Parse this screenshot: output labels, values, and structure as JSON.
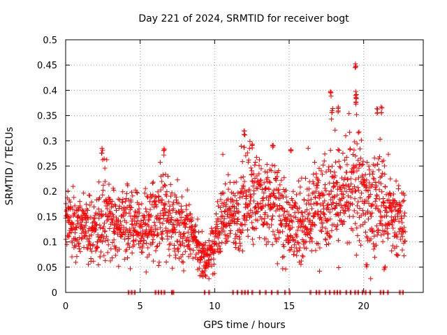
{
  "chart_data": {
    "type": "scatter",
    "title": "Day 221 of 2024, SRMTID for receiver bogt",
    "xlabel": "GPS time / hours",
    "ylabel": "SRMTID / TECUs",
    "xlim": [
      0,
      24
    ],
    "ylim": [
      0,
      0.5
    ],
    "grid": true,
    "marker": "+",
    "color": "#ff0000",
    "x_ticks": [
      {
        "value": 0,
        "label": "0"
      },
      {
        "value": 5,
        "label": "5"
      },
      {
        "value": 10,
        "label": "10"
      },
      {
        "value": 15,
        "label": "15"
      },
      {
        "value": 20,
        "label": "20"
      }
    ],
    "y_ticks": [
      {
        "value": 0,
        "label": "0"
      },
      {
        "value": 0.05,
        "label": "0.05"
      },
      {
        "value": 0.1,
        "label": "0.1"
      },
      {
        "value": 0.15,
        "label": "0.15"
      },
      {
        "value": 0.2,
        "label": "0.2"
      },
      {
        "value": 0.25,
        "label": "0.25"
      },
      {
        "value": 0.3,
        "label": "0.3"
      },
      {
        "value": 0.35,
        "label": "0.35"
      },
      {
        "value": 0.4,
        "label": "0.4"
      },
      {
        "value": 0.45,
        "label": "0.45"
      },
      {
        "value": 0.5,
        "label": "0.5"
      }
    ],
    "series_profile": {
      "name": "SRMTID",
      "hours": [
        0,
        0.5,
        1,
        1.5,
        2,
        2.5,
        3,
        3.5,
        4,
        4.5,
        5,
        5.5,
        6,
        6.5,
        7,
        7.5,
        8,
        8.5,
        9,
        9.5,
        10,
        10.5,
        11,
        11.5,
        12,
        12.5,
        13,
        13.5,
        14,
        14.5,
        15,
        15.5,
        16,
        16.5,
        17,
        17.5,
        18,
        18.5,
        19,
        19.5,
        20,
        20.5,
        21,
        21.5,
        22,
        22.5,
        22.8
      ],
      "median": [
        0.16,
        0.13,
        0.13,
        0.14,
        0.11,
        0.17,
        0.15,
        0.13,
        0.13,
        0.14,
        0.12,
        0.13,
        0.15,
        0.16,
        0.14,
        0.14,
        0.12,
        0.11,
        0.08,
        0.06,
        0.1,
        0.14,
        0.16,
        0.14,
        0.19,
        0.2,
        0.18,
        0.17,
        0.18,
        0.16,
        0.14,
        0.12,
        0.14,
        0.15,
        0.18,
        0.19,
        0.2,
        0.18,
        0.19,
        0.21,
        0.19,
        0.17,
        0.19,
        0.16,
        0.14,
        0.14,
        0.13
      ],
      "spread": [
        0.03,
        0.03,
        0.03,
        0.04,
        0.03,
        0.05,
        0.04,
        0.03,
        0.04,
        0.04,
        0.03,
        0.04,
        0.05,
        0.05,
        0.04,
        0.04,
        0.04,
        0.03,
        0.03,
        0.02,
        0.03,
        0.04,
        0.04,
        0.04,
        0.05,
        0.05,
        0.04,
        0.05,
        0.05,
        0.05,
        0.04,
        0.04,
        0.04,
        0.05,
        0.05,
        0.06,
        0.06,
        0.05,
        0.06,
        0.06,
        0.06,
        0.05,
        0.06,
        0.05,
        0.04,
        0.04,
        0.03
      ],
      "peaks": [
        {
          "x": 2.45,
          "y": 0.29
        },
        {
          "x": 6.6,
          "y": 0.285
        },
        {
          "x": 12.0,
          "y": 0.325
        },
        {
          "x": 12.5,
          "y": 0.3
        },
        {
          "x": 13.9,
          "y": 0.295
        },
        {
          "x": 15.1,
          "y": 0.295
        },
        {
          "x": 17.8,
          "y": 0.4
        },
        {
          "x": 17.9,
          "y": 0.37
        },
        {
          "x": 18.3,
          "y": 0.37
        },
        {
          "x": 19.45,
          "y": 0.46
        },
        {
          "x": 19.5,
          "y": 0.4
        },
        {
          "x": 19.5,
          "y": 0.385
        },
        {
          "x": 20.9,
          "y": 0.365
        },
        {
          "x": 21.2,
          "y": 0.37
        }
      ],
      "troughs": [
        {
          "x": 9.2,
          "y": 0.03
        },
        {
          "x": 9.4,
          "y": 0.025
        },
        {
          "x": 20.2,
          "y": 0.05
        },
        {
          "x": 21.4,
          "y": 0.045
        }
      ],
      "zero_value_hours": [
        4.2,
        4.4,
        4.6,
        6.0,
        6.2,
        6.4,
        6.6,
        7.1,
        7.2,
        9.3,
        9.6,
        11.2,
        11.5,
        11.8,
        12.0,
        12.2,
        12.5,
        13.0,
        13.4,
        13.8,
        14.2,
        14.7,
        15.0,
        16.4,
        16.8,
        17.0,
        17.4,
        17.7,
        18.0,
        18.2,
        18.4,
        18.8,
        19.1,
        19.4,
        19.6,
        19.9,
        20.1,
        20.4,
        21.1,
        21.3,
        21.6,
        22.4,
        22.6
      ]
    }
  }
}
